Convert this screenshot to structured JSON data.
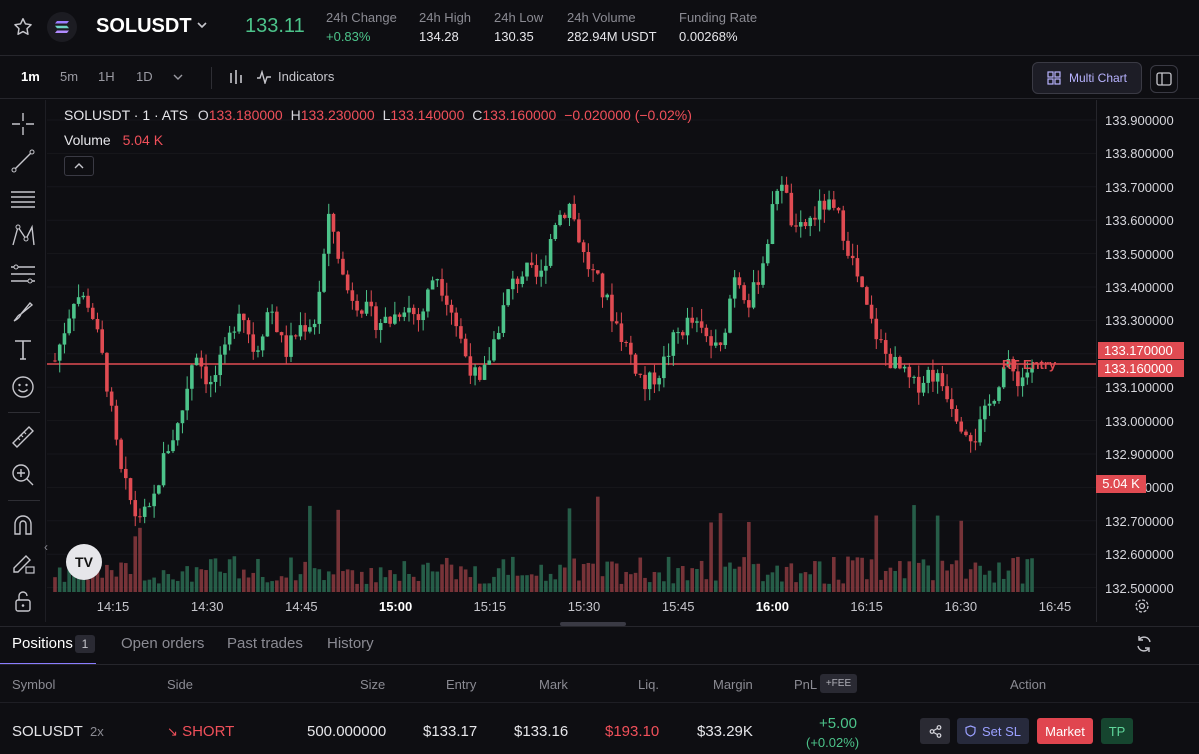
{
  "header": {
    "symbol": "SOLUSDT",
    "last_price": "133.11",
    "stats": [
      {
        "label": "24h Change",
        "value": "+0.83%"
      },
      {
        "label": "24h High",
        "value": "134.28"
      },
      {
        "label": "24h Low",
        "value": "130.35"
      },
      {
        "label": "24h Volume",
        "value": "282.94M USDT"
      },
      {
        "label": "Funding Rate",
        "value": "0.00268%"
      }
    ]
  },
  "toolbar": {
    "timeframes": [
      "1m",
      "5m",
      "1H",
      "1D"
    ],
    "indicators_label": "Indicators",
    "multi_chart_label": "Multi Chart"
  },
  "chart": {
    "legend_title": "SOLUSDT · 1 · ATS",
    "ohlc": {
      "o": "133.180000",
      "h": "133.230000",
      "l": "133.140000",
      "c": "133.160000",
      "change": "−0.020000 (−0.02%)"
    },
    "volume_label": "Volume",
    "volume_value": "5.04 K",
    "price_axis": [
      "133.900000",
      "133.800000",
      "133.700000",
      "133.600000",
      "133.500000",
      "133.400000",
      "133.300000",
      "133.200000",
      "133.100000",
      "133.000000",
      "132.900000",
      "132.800000",
      "132.700000",
      "132.600000",
      "132.500000"
    ],
    "price_tags": [
      "133.170000",
      "133.160000"
    ],
    "volume_tag": "5.04 K",
    "entry_label": "RT Entry",
    "time_axis": [
      {
        "t": "14:15",
        "bold": false
      },
      {
        "t": "14:30",
        "bold": false
      },
      {
        "t": "14:45",
        "bold": false
      },
      {
        "t": "15:00",
        "bold": true
      },
      {
        "t": "15:15",
        "bold": false
      },
      {
        "t": "15:30",
        "bold": false
      },
      {
        "t": "15:45",
        "bold": false
      },
      {
        "t": "16:00",
        "bold": true
      },
      {
        "t": "16:15",
        "bold": false
      },
      {
        "t": "16:30",
        "bold": false
      },
      {
        "t": "16:45",
        "bold": false
      }
    ],
    "tv_logo": "TV",
    "colors": {
      "up": "#4cc38a",
      "down": "#e04b52",
      "entry_line": "#e04b52"
    }
  },
  "positions_panel": {
    "tabs": [
      "Positions",
      "Open orders",
      "Past trades",
      "History"
    ],
    "positions_count": "1",
    "columns": [
      "Symbol",
      "Side",
      "Size",
      "Entry",
      "Mark",
      "Liq.",
      "Margin",
      "PnL",
      "Action"
    ],
    "fee_badge": "+FEE",
    "row": {
      "symbol": "SOLUSDT",
      "leverage": "2x",
      "side": "SHORT",
      "size": "500.000000",
      "entry": "$133.17",
      "mark": "$133.16",
      "liq": "$193.10",
      "margin": "$33.29K",
      "pnl": "+5.00",
      "pnl_pct": "(+0.02%)"
    },
    "actions": {
      "set_sl": "Set SL",
      "market": "Market",
      "tp": "TP"
    }
  }
}
